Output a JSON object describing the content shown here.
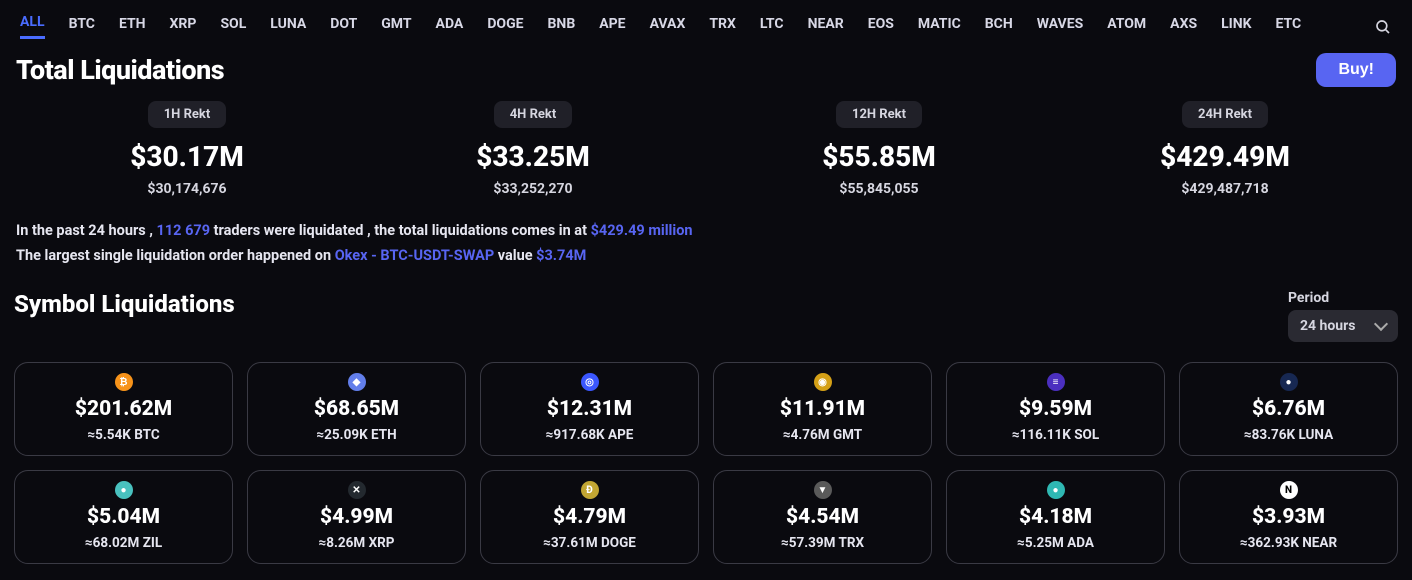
{
  "tabs": [
    "ALL",
    "BTC",
    "ETH",
    "XRP",
    "SOL",
    "LUNA",
    "DOT",
    "GMT",
    "ADA",
    "DOGE",
    "BNB",
    "APE",
    "AVAX",
    "TRX",
    "LTC",
    "NEAR",
    "EOS",
    "MATIC",
    "BCH",
    "WAVES",
    "ATOM",
    "AXS",
    "LINK",
    "ETC"
  ],
  "active_tab_index": 0,
  "title": "Total Liquidations",
  "buy_label": "Buy!",
  "rekt": [
    {
      "label": "1H Rekt",
      "big": "$30.17M",
      "small": "$30,174,676"
    },
    {
      "label": "4H Rekt",
      "big": "$33.25M",
      "small": "$33,252,270"
    },
    {
      "label": "12H Rekt",
      "big": "$55.85M",
      "small": "$55,845,055"
    },
    {
      "label": "24H Rekt",
      "big": "$429.49M",
      "small": "$429,487,718"
    }
  ],
  "summary_line1": {
    "a": "In the past 24 hours , ",
    "traders": "112 679",
    "b": " traders were liquidated , the total liquidations comes in at ",
    "amount": "$429.49 million"
  },
  "summary_line2": {
    "a": "The largest single liquidation order happened on ",
    "exchange": "Okex - BTC-USDT-SWAP",
    "b": " value ",
    "value": "$3.74M"
  },
  "section2_title": "Symbol Liquidations",
  "period_label": "Period",
  "period_value": "24 hours",
  "cards": [
    {
      "symbol": "BTC",
      "usd": "$201.62M",
      "approx": "≈5.54K BTC",
      "bg": "#f7931a",
      "glyph": "₿"
    },
    {
      "symbol": "ETH",
      "usd": "$68.65M",
      "approx": "≈25.09K ETH",
      "bg": "#627eea",
      "glyph": "◆"
    },
    {
      "symbol": "APE",
      "usd": "$12.31M",
      "approx": "≈917.68K APE",
      "bg": "#3b57ff",
      "glyph": "◎"
    },
    {
      "symbol": "GMT",
      "usd": "$11.91M",
      "approx": "≈4.76M GMT",
      "bg": "#d4a017",
      "glyph": "◉"
    },
    {
      "symbol": "SOL",
      "usd": "$9.59M",
      "approx": "≈116.11K SOL",
      "bg": "#4b2fbf",
      "glyph": "≡"
    },
    {
      "symbol": "LUNA",
      "usd": "$6.76M",
      "approx": "≈83.76K LUNA",
      "bg": "#172852",
      "glyph": "●"
    },
    {
      "symbol": "ZIL",
      "usd": "$5.04M",
      "approx": "≈68.02M ZIL",
      "bg": "#49c1bf",
      "glyph": "●"
    },
    {
      "symbol": "XRP",
      "usd": "$4.99M",
      "approx": "≈8.26M XRP",
      "bg": "#23292f",
      "glyph": "✕"
    },
    {
      "symbol": "DOGE",
      "usd": "$4.79M",
      "approx": "≈37.61M DOGE",
      "bg": "#c2a633",
      "glyph": "Ð"
    },
    {
      "symbol": "TRX",
      "usd": "$4.54M",
      "approx": "≈57.39M TRX",
      "bg": "#5a5a5a",
      "glyph": "▼"
    },
    {
      "symbol": "ADA",
      "usd": "$4.18M",
      "approx": "≈5.25M ADA",
      "bg": "#2fb8b3",
      "glyph": "●"
    },
    {
      "symbol": "NEAR",
      "usd": "$3.93M",
      "approx": "≈362.93K NEAR",
      "bg": "#ffffff",
      "glyph": "N",
      "fg": "#000"
    }
  ],
  "colors": {
    "accent": "#5865f2",
    "background": "#0a0a0f",
    "card_border": "#3a3a44",
    "badge_bg": "#202028"
  }
}
